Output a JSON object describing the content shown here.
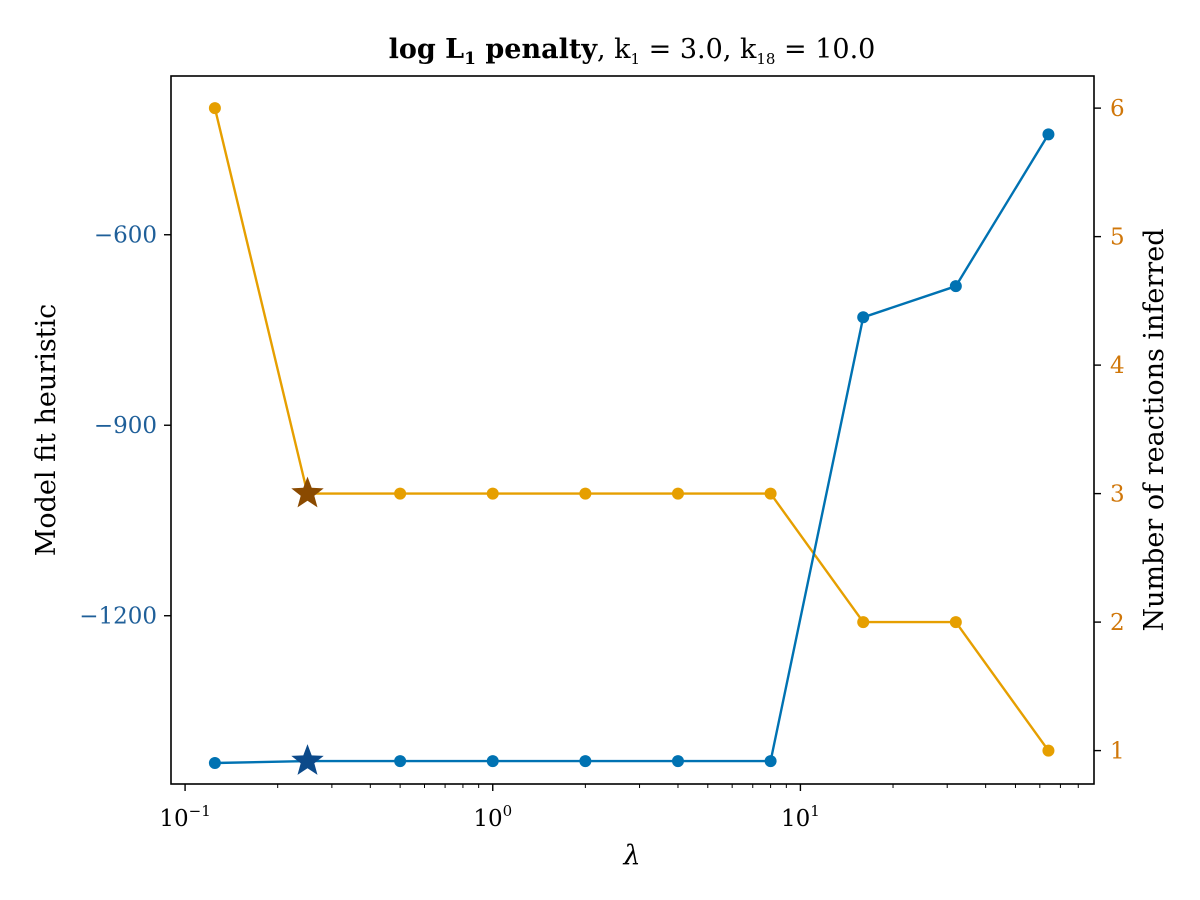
{
  "chart_data": {
    "type": "line",
    "title": {
      "bold": "log L",
      "bold_sub": "1",
      "bold_tail": " penalty",
      "rest": ", k",
      "k1_sub": "1",
      "k1_val": " = 3.0, k",
      "k18_sub": "18",
      "k18_val": " = 10.0"
    },
    "xlabel": "λ",
    "ylabel_left": "Model fit heuristic",
    "ylabel_right": "Number of reactions inferred",
    "x_scale": "log",
    "x": [
      0.125,
      0.25,
      0.5,
      1,
      2,
      4,
      8,
      16,
      32,
      64
    ],
    "x_ticks": [
      {
        "value": 0.1,
        "base": "10",
        "exp": "−1"
      },
      {
        "value": 1,
        "base": "10",
        "exp": "0"
      },
      {
        "value": 10,
        "base": "10",
        "exp": "1"
      }
    ],
    "xlim": [
      0.09,
      90
    ],
    "left_axis": {
      "ylim": [
        -1465,
        -350
      ],
      "ticks": [
        {
          "value": -600,
          "label": "−600"
        },
        {
          "value": -900,
          "label": "−900"
        },
        {
          "value": -1200,
          "label": "−1200"
        }
      ],
      "tick_color": "#1f5f99"
    },
    "right_axis": {
      "ylim": [
        0.74,
        6.25
      ],
      "ticks": [
        {
          "value": 1,
          "label": "1"
        },
        {
          "value": 2,
          "label": "2"
        },
        {
          "value": 3,
          "label": "3"
        },
        {
          "value": 4,
          "label": "4"
        },
        {
          "value": 5,
          "label": "5"
        },
        {
          "value": 6,
          "label": "6"
        }
      ],
      "tick_color": "#d0770a"
    },
    "series": [
      {
        "axis": "left",
        "color": "#0072b2",
        "values": [
          -1432,
          -1429,
          -1429,
          -1429,
          -1429,
          -1429,
          -1429,
          -730,
          -681,
          -442
        ],
        "highlight_index": 1,
        "highlight_color": "#0c4a8a"
      },
      {
        "axis": "right",
        "color": "#e69f00",
        "values": [
          6,
          3,
          3,
          3,
          3,
          3,
          3,
          2,
          2,
          1
        ],
        "highlight_index": 1,
        "highlight_color": "#8a4a00"
      }
    ],
    "grid": false,
    "legend": "none"
  }
}
